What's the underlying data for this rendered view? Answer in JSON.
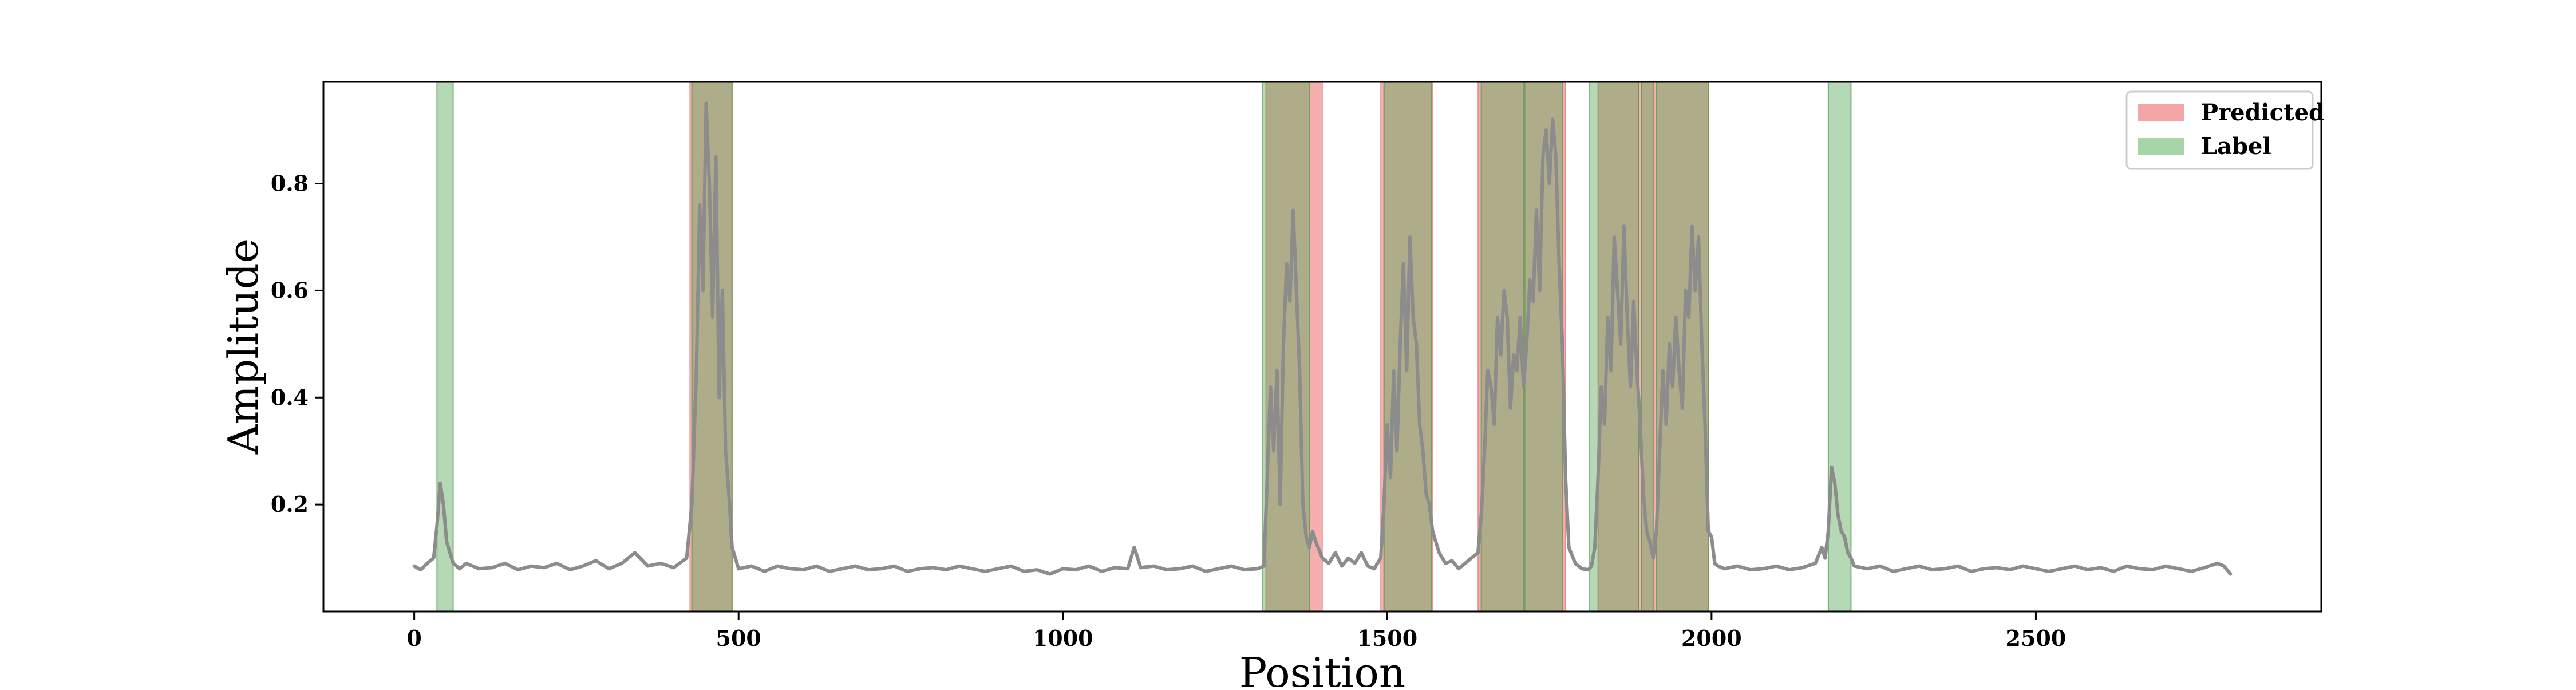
{
  "chart_data": {
    "type": "line",
    "title": "",
    "xlabel": "Position",
    "ylabel": "Amplitude",
    "xlim": [
      -140,
      2940
    ],
    "ylim": [
      0.0,
      0.99
    ],
    "xticks": [
      0,
      500,
      1000,
      1500,
      2000,
      2500
    ],
    "yticks": [
      0.2,
      0.4,
      0.6,
      0.8
    ],
    "grid": false,
    "legend_position": "top-right",
    "legend": [
      {
        "label": "Predicted",
        "color": "#f4a6a6"
      },
      {
        "label": "Label",
        "color": "#a8d5a8"
      }
    ],
    "predicted_regions": [
      [
        425,
        490
      ],
      [
        1313,
        1400
      ],
      [
        1490,
        1570
      ],
      [
        1640,
        1775
      ],
      [
        1825,
        1995
      ]
    ],
    "label_regions": [
      [
        35,
        60
      ],
      [
        428,
        490
      ],
      [
        1308,
        1380
      ],
      [
        1495,
        1568
      ],
      [
        1645,
        1710
      ],
      [
        1712,
        1770
      ],
      [
        1812,
        1888
      ],
      [
        1892,
        1910
      ],
      [
        1915,
        1995
      ],
      [
        2180,
        2215
      ]
    ],
    "series": [
      {
        "color": "#8c8c8c",
        "points": [
          [
            0,
            0.085
          ],
          [
            10,
            0.078
          ],
          [
            20,
            0.09
          ],
          [
            30,
            0.1
          ],
          [
            35,
            0.16
          ],
          [
            40,
            0.24
          ],
          [
            45,
            0.2
          ],
          [
            50,
            0.13
          ],
          [
            55,
            0.11
          ],
          [
            60,
            0.09
          ],
          [
            70,
            0.08
          ],
          [
            80,
            0.09
          ],
          [
            90,
            0.085
          ],
          [
            100,
            0.08
          ],
          [
            120,
            0.082
          ],
          [
            140,
            0.09
          ],
          [
            160,
            0.078
          ],
          [
            180,
            0.085
          ],
          [
            200,
            0.082
          ],
          [
            220,
            0.09
          ],
          [
            240,
            0.078
          ],
          [
            260,
            0.085
          ],
          [
            280,
            0.095
          ],
          [
            300,
            0.08
          ],
          [
            320,
            0.09
          ],
          [
            340,
            0.11
          ],
          [
            360,
            0.085
          ],
          [
            380,
            0.09
          ],
          [
            400,
            0.082
          ],
          [
            420,
            0.1
          ],
          [
            428,
            0.2
          ],
          [
            435,
            0.45
          ],
          [
            440,
            0.76
          ],
          [
            445,
            0.6
          ],
          [
            450,
            0.95
          ],
          [
            455,
            0.8
          ],
          [
            460,
            0.55
          ],
          [
            465,
            0.85
          ],
          [
            470,
            0.4
          ],
          [
            475,
            0.6
          ],
          [
            480,
            0.3
          ],
          [
            485,
            0.22
          ],
          [
            490,
            0.12
          ],
          [
            500,
            0.08
          ],
          [
            520,
            0.085
          ],
          [
            540,
            0.075
          ],
          [
            560,
            0.085
          ],
          [
            580,
            0.08
          ],
          [
            600,
            0.078
          ],
          [
            620,
            0.085
          ],
          [
            640,
            0.075
          ],
          [
            660,
            0.08
          ],
          [
            680,
            0.085
          ],
          [
            700,
            0.078
          ],
          [
            720,
            0.08
          ],
          [
            740,
            0.085
          ],
          [
            760,
            0.075
          ],
          [
            780,
            0.08
          ],
          [
            800,
            0.082
          ],
          [
            820,
            0.078
          ],
          [
            840,
            0.085
          ],
          [
            860,
            0.08
          ],
          [
            880,
            0.075
          ],
          [
            900,
            0.08
          ],
          [
            920,
            0.085
          ],
          [
            940,
            0.075
          ],
          [
            960,
            0.078
          ],
          [
            980,
            0.07
          ],
          [
            1000,
            0.08
          ],
          [
            1020,
            0.078
          ],
          [
            1040,
            0.085
          ],
          [
            1060,
            0.075
          ],
          [
            1080,
            0.082
          ],
          [
            1100,
            0.08
          ],
          [
            1110,
            0.12
          ],
          [
            1120,
            0.082
          ],
          [
            1140,
            0.085
          ],
          [
            1160,
            0.078
          ],
          [
            1180,
            0.08
          ],
          [
            1200,
            0.085
          ],
          [
            1220,
            0.075
          ],
          [
            1240,
            0.08
          ],
          [
            1260,
            0.085
          ],
          [
            1280,
            0.078
          ],
          [
            1300,
            0.08
          ],
          [
            1310,
            0.085
          ],
          [
            1315,
            0.25
          ],
          [
            1320,
            0.42
          ],
          [
            1325,
            0.3
          ],
          [
            1330,
            0.45
          ],
          [
            1335,
            0.2
          ],
          [
            1340,
            0.5
          ],
          [
            1345,
            0.65
          ],
          [
            1350,
            0.58
          ],
          [
            1355,
            0.75
          ],
          [
            1360,
            0.6
          ],
          [
            1365,
            0.45
          ],
          [
            1370,
            0.2
          ],
          [
            1375,
            0.14
          ],
          [
            1380,
            0.12
          ],
          [
            1385,
            0.15
          ],
          [
            1390,
            0.13
          ],
          [
            1400,
            0.1
          ],
          [
            1410,
            0.09
          ],
          [
            1420,
            0.11
          ],
          [
            1430,
            0.085
          ],
          [
            1440,
            0.1
          ],
          [
            1450,
            0.09
          ],
          [
            1460,
            0.11
          ],
          [
            1470,
            0.085
          ],
          [
            1480,
            0.08
          ],
          [
            1490,
            0.1
          ],
          [
            1495,
            0.2
          ],
          [
            1500,
            0.35
          ],
          [
            1505,
            0.25
          ],
          [
            1510,
            0.45
          ],
          [
            1515,
            0.3
          ],
          [
            1520,
            0.5
          ],
          [
            1525,
            0.65
          ],
          [
            1530,
            0.45
          ],
          [
            1535,
            0.7
          ],
          [
            1540,
            0.55
          ],
          [
            1545,
            0.5
          ],
          [
            1550,
            0.35
          ],
          [
            1555,
            0.3
          ],
          [
            1560,
            0.22
          ],
          [
            1565,
            0.2
          ],
          [
            1570,
            0.15
          ],
          [
            1580,
            0.11
          ],
          [
            1590,
            0.09
          ],
          [
            1600,
            0.095
          ],
          [
            1610,
            0.08
          ],
          [
            1620,
            0.09
          ],
          [
            1630,
            0.1
          ],
          [
            1640,
            0.11
          ],
          [
            1645,
            0.18
          ],
          [
            1650,
            0.3
          ],
          [
            1655,
            0.45
          ],
          [
            1660,
            0.42
          ],
          [
            1665,
            0.35
          ],
          [
            1670,
            0.55
          ],
          [
            1675,
            0.48
          ],
          [
            1680,
            0.6
          ],
          [
            1685,
            0.55
          ],
          [
            1690,
            0.38
          ],
          [
            1695,
            0.48
          ],
          [
            1700,
            0.45
          ],
          [
            1705,
            0.55
          ],
          [
            1710,
            0.42
          ],
          [
            1715,
            0.5
          ],
          [
            1720,
            0.62
          ],
          [
            1725,
            0.58
          ],
          [
            1730,
            0.75
          ],
          [
            1735,
            0.6
          ],
          [
            1740,
            0.85
          ],
          [
            1745,
            0.9
          ],
          [
            1750,
            0.8
          ],
          [
            1755,
            0.92
          ],
          [
            1760,
            0.85
          ],
          [
            1765,
            0.65
          ],
          [
            1770,
            0.5
          ],
          [
            1775,
            0.25
          ],
          [
            1780,
            0.12
          ],
          [
            1790,
            0.09
          ],
          [
            1800,
            0.08
          ],
          [
            1810,
            0.078
          ],
          [
            1815,
            0.085
          ],
          [
            1820,
            0.12
          ],
          [
            1825,
            0.25
          ],
          [
            1830,
            0.42
          ],
          [
            1835,
            0.35
          ],
          [
            1840,
            0.55
          ],
          [
            1845,
            0.45
          ],
          [
            1850,
            0.7
          ],
          [
            1855,
            0.6
          ],
          [
            1860,
            0.5
          ],
          [
            1865,
            0.72
          ],
          [
            1870,
            0.55
          ],
          [
            1875,
            0.42
          ],
          [
            1880,
            0.58
          ],
          [
            1885,
            0.45
          ],
          [
            1890,
            0.35
          ],
          [
            1895,
            0.22
          ],
          [
            1900,
            0.15
          ],
          [
            1905,
            0.13
          ],
          [
            1910,
            0.1
          ],
          [
            1915,
            0.15
          ],
          [
            1920,
            0.3
          ],
          [
            1925,
            0.45
          ],
          [
            1930,
            0.35
          ],
          [
            1935,
            0.5
          ],
          [
            1940,
            0.42
          ],
          [
            1945,
            0.55
          ],
          [
            1950,
            0.45
          ],
          [
            1955,
            0.38
          ],
          [
            1960,
            0.6
          ],
          [
            1965,
            0.55
          ],
          [
            1970,
            0.72
          ],
          [
            1975,
            0.6
          ],
          [
            1980,
            0.7
          ],
          [
            1985,
            0.5
          ],
          [
            1990,
            0.35
          ],
          [
            1995,
            0.15
          ],
          [
            2000,
            0.14
          ],
          [
            2005,
            0.09
          ],
          [
            2010,
            0.085
          ],
          [
            2020,
            0.08
          ],
          [
            2040,
            0.085
          ],
          [
            2060,
            0.078
          ],
          [
            2080,
            0.08
          ],
          [
            2100,
            0.085
          ],
          [
            2120,
            0.078
          ],
          [
            2140,
            0.082
          ],
          [
            2160,
            0.09
          ],
          [
            2170,
            0.12
          ],
          [
            2175,
            0.1
          ],
          [
            2180,
            0.15
          ],
          [
            2185,
            0.27
          ],
          [
            2190,
            0.24
          ],
          [
            2195,
            0.18
          ],
          [
            2200,
            0.15
          ],
          [
            2205,
            0.14
          ],
          [
            2210,
            0.11
          ],
          [
            2215,
            0.1
          ],
          [
            2220,
            0.085
          ],
          [
            2240,
            0.08
          ],
          [
            2260,
            0.085
          ],
          [
            2280,
            0.075
          ],
          [
            2300,
            0.08
          ],
          [
            2320,
            0.085
          ],
          [
            2340,
            0.078
          ],
          [
            2360,
            0.08
          ],
          [
            2380,
            0.085
          ],
          [
            2400,
            0.075
          ],
          [
            2420,
            0.08
          ],
          [
            2440,
            0.082
          ],
          [
            2460,
            0.078
          ],
          [
            2480,
            0.085
          ],
          [
            2500,
            0.08
          ],
          [
            2520,
            0.075
          ],
          [
            2540,
            0.08
          ],
          [
            2560,
            0.085
          ],
          [
            2580,
            0.078
          ],
          [
            2600,
            0.082
          ],
          [
            2620,
            0.075
          ],
          [
            2640,
            0.085
          ],
          [
            2660,
            0.08
          ],
          [
            2680,
            0.078
          ],
          [
            2700,
            0.085
          ],
          [
            2720,
            0.08
          ],
          [
            2740,
            0.075
          ],
          [
            2760,
            0.082
          ],
          [
            2780,
            0.09
          ],
          [
            2790,
            0.085
          ],
          [
            2800,
            0.07
          ]
        ]
      }
    ]
  }
}
